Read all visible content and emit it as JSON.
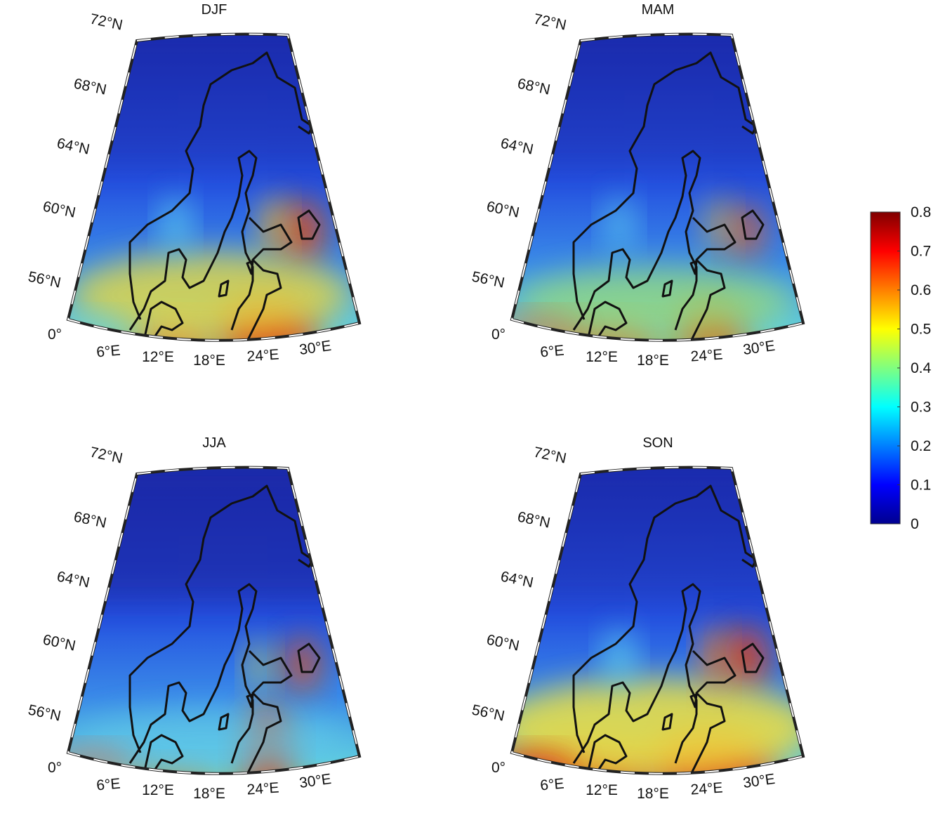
{
  "panels": [
    {
      "title": "DJF"
    },
    {
      "title": "MAM"
    },
    {
      "title": "JJA"
    },
    {
      "title": "SON"
    }
  ],
  "lat_labels": [
    "72°N",
    "68°N",
    "64°N",
    "60°N",
    "56°N",
    "0°"
  ],
  "lon_labels": [
    "6°E",
    "12°E",
    "18°E",
    "24°E",
    "30°E"
  ],
  "colorbar": {
    "ticks": [
      0,
      0.1,
      0.2,
      0.3,
      0.4,
      0.5,
      0.6,
      0.7,
      0.8
    ]
  }
}
